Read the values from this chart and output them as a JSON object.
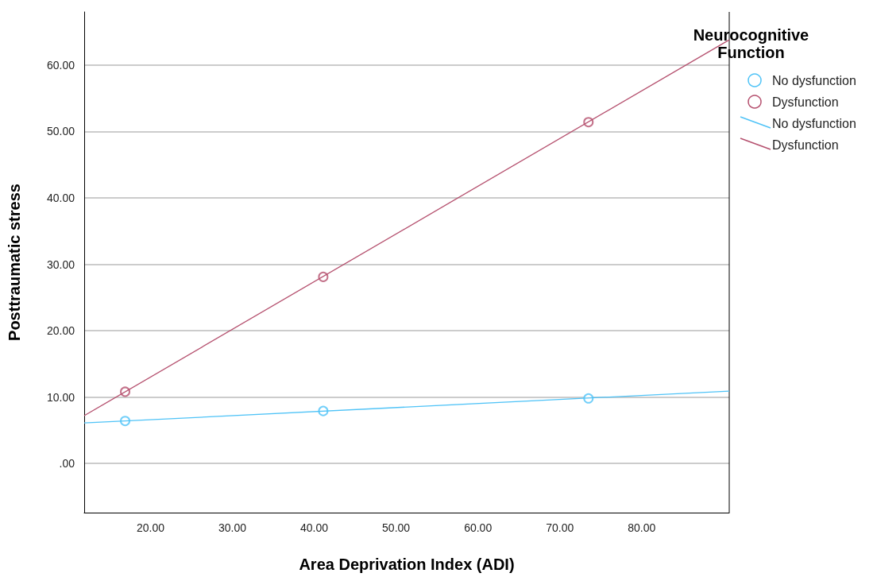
{
  "chart_data": {
    "type": "scatter",
    "xlabel": "Area Deprivation Index (ADI)",
    "ylabel": "Posttraumatic stress",
    "legend_title": "Neurocognitive Function",
    "legend": "top right",
    "grid": "y",
    "marker": "circle",
    "xlim": [
      11.9,
      90.7
    ],
    "ylim": [
      -7.4,
      68
    ],
    "xticks": [
      {
        "value": 20,
        "label": "20.00"
      },
      {
        "value": 30,
        "label": "30.00"
      },
      {
        "value": 40,
        "label": "40.00"
      },
      {
        "value": 50,
        "label": "50.00"
      },
      {
        "value": 60,
        "label": "60.00"
      },
      {
        "value": 70,
        "label": "70.00"
      },
      {
        "value": 80,
        "label": "80.00"
      }
    ],
    "yticks": [
      {
        "value": 0,
        "label": ".00"
      },
      {
        "value": 10,
        "label": "10.00"
      },
      {
        "value": 20,
        "label": "20.00"
      },
      {
        "value": 30,
        "label": "30.00"
      },
      {
        "value": 40,
        "label": "40.00"
      },
      {
        "value": 50,
        "label": "50.00"
      },
      {
        "value": 60,
        "label": "60.00"
      }
    ],
    "series": [
      {
        "name": "No dysfunction",
        "color": "#4fc3f7",
        "x": [
          16.9,
          41.1,
          73.5
        ],
        "values": [
          6.4,
          7.9,
          9.8
        ]
      },
      {
        "name": "Dysfunction",
        "color": "#b5506e",
        "x": [
          16.9,
          41.1,
          73.5
        ],
        "values": [
          10.8,
          28.1,
          51.4
        ]
      },
      {
        "name": "No dysfunction",
        "type": "line",
        "marker": "none",
        "color": "#4fc3f7",
        "x": [
          11.9,
          90.7
        ],
        "values": [
          6.1,
          10.9
        ]
      },
      {
        "name": "Dysfunction",
        "type": "line",
        "marker": "none",
        "color": "#b5506e",
        "x": [
          11.9,
          90.7
        ],
        "values": [
          7.2,
          63.8
        ]
      }
    ]
  }
}
